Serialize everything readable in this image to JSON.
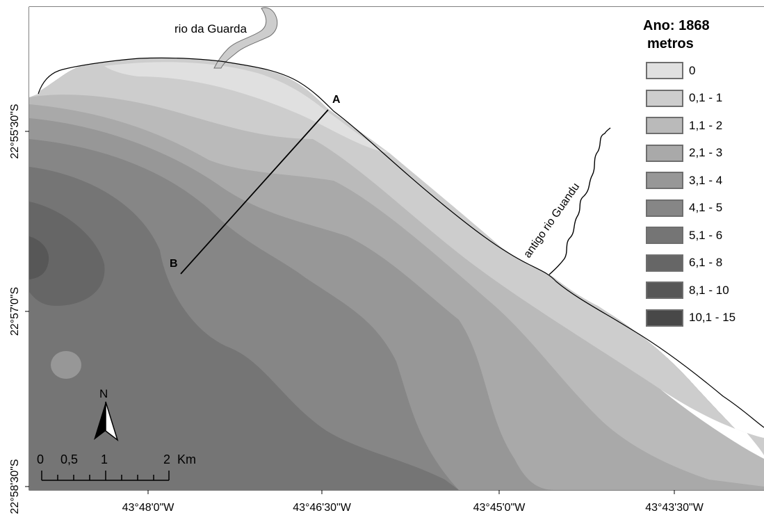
{
  "legend": {
    "title": "Ano: 1868",
    "unit": "metros",
    "classes": [
      {
        "label": "0",
        "color": "#e0e0e0"
      },
      {
        "label": "0,1 - 1",
        "color": "#cdcdcd"
      },
      {
        "label": "1,1 - 2",
        "color": "#bababa"
      },
      {
        "label": "2,1 - 3",
        "color": "#a9a9a9"
      },
      {
        "label": "3,1 - 4",
        "color": "#979797"
      },
      {
        "label": "4,1 - 5",
        "color": "#868686"
      },
      {
        "label": "5,1 - 6",
        "color": "#757575"
      },
      {
        "label": "6,1 - 8",
        "color": "#666666"
      },
      {
        "label": "8,1 - 10",
        "color": "#575757"
      },
      {
        "label": "10,1 - 15",
        "color": "#484848"
      }
    ]
  },
  "labels": {
    "river_north": "rio da Guarda",
    "river_east": "antigo rio Guandu",
    "point_a": "A",
    "point_b": "B",
    "north": "N"
  },
  "scalebar": {
    "ticks": [
      "0",
      "0,5",
      "1",
      "2"
    ],
    "unit": "Km"
  },
  "axes": {
    "x_ticks": [
      "43°48'0\"W",
      "43°46'30\"W",
      "43°45'0\"W",
      "43°43'30\"W"
    ],
    "y_ticks": [
      "22°55'30\"S",
      "22°57'0\"S",
      "22°58'30\"S"
    ]
  }
}
